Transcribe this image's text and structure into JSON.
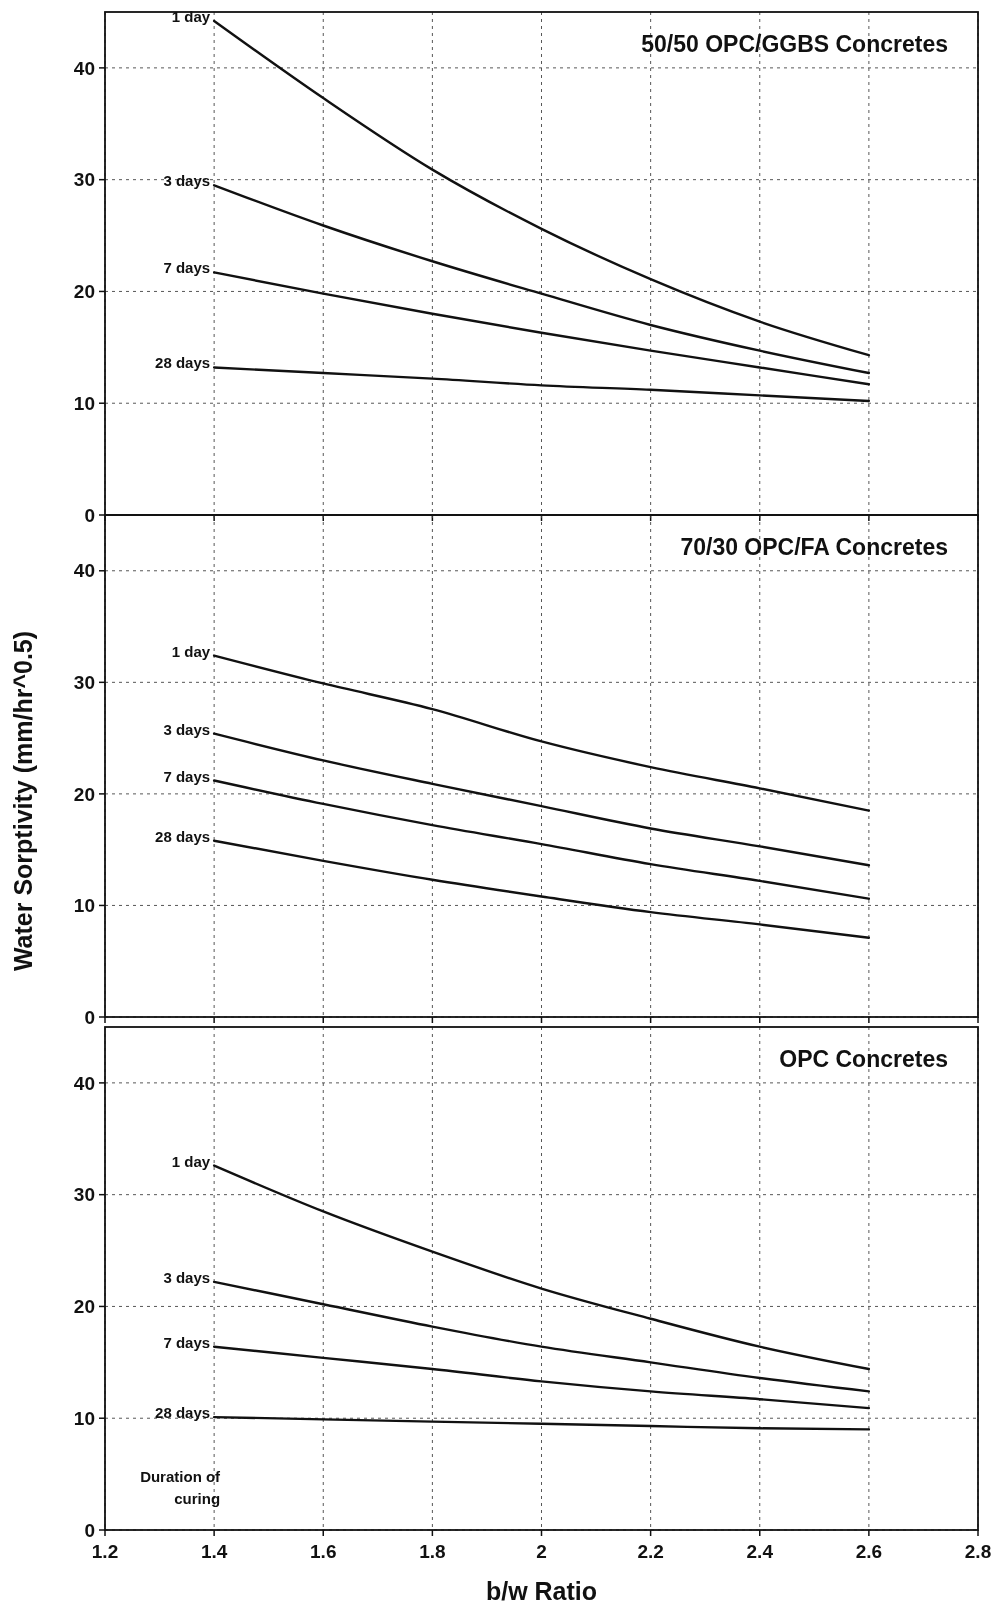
{
  "chart_data": [
    {
      "type": "line",
      "title": "50/50 OPC/GGBS Concretes",
      "x": [
        1.4,
        1.6,
        1.8,
        2.0,
        2.2,
        2.4,
        2.6
      ],
      "series": [
        {
          "name": "1 day",
          "color": "#111111",
          "values": [
            44.2,
            37.3,
            30.9,
            25.6,
            21.1,
            17.3,
            14.3
          ]
        },
        {
          "name": "3 days",
          "color": "#111111",
          "values": [
            29.5,
            25.9,
            22.7,
            19.8,
            17.0,
            14.7,
            12.7
          ]
        },
        {
          "name": "7 days",
          "color": "#111111",
          "values": [
            21.7,
            19.8,
            18.0,
            16.3,
            14.7,
            13.2,
            11.7
          ]
        },
        {
          "name": "28 days",
          "color": "#111111",
          "values": [
            13.2,
            12.7,
            12.2,
            11.6,
            11.2,
            10.7,
            10.2
          ]
        }
      ],
      "xlim": [
        1.2,
        2.8
      ],
      "xticks": [
        1.2,
        1.4,
        1.6,
        1.8,
        2,
        2.2,
        2.4,
        2.6,
        2.8
      ],
      "ylim": [
        0,
        45
      ],
      "yticks": [
        0,
        10,
        20,
        30,
        40
      ],
      "grid": true,
      "tick_labels": "y"
    },
    {
      "type": "line",
      "title": "70/30 OPC/FA Concretes",
      "ylabel": "Water Sorptivity (mm/hr^0.5)",
      "x": [
        1.4,
        1.6,
        1.8,
        2.0,
        2.2,
        2.4,
        2.6
      ],
      "series": [
        {
          "name": "1 day",
          "color": "#111111",
          "values": [
            32.4,
            29.9,
            27.6,
            24.7,
            22.4,
            20.5,
            18.5
          ]
        },
        {
          "name": "3 days",
          "color": "#111111",
          "values": [
            25.4,
            23.0,
            20.9,
            18.9,
            16.9,
            15.3,
            13.6
          ]
        },
        {
          "name": "7 days",
          "color": "#111111",
          "values": [
            21.2,
            19.1,
            17.2,
            15.5,
            13.7,
            12.2,
            10.6
          ]
        },
        {
          "name": "28 days",
          "color": "#111111",
          "values": [
            15.8,
            14.0,
            12.3,
            10.8,
            9.4,
            8.3,
            7.1
          ]
        }
      ],
      "xlim": [
        1.2,
        2.8
      ],
      "xticks": [
        1.2,
        1.4,
        1.6,
        1.8,
        2,
        2.2,
        2.4,
        2.6,
        2.8
      ],
      "ylim": [
        0,
        45
      ],
      "yticks": [
        0,
        10,
        20,
        30,
        40
      ],
      "grid": true,
      "tick_labels": "y"
    },
    {
      "type": "line",
      "title": "OPC Concretes",
      "xlabel": "b/w Ratio",
      "annotations": [
        "Duration of curing"
      ],
      "x": [
        1.4,
        1.6,
        1.8,
        2.0,
        2.2,
        2.4,
        2.6
      ],
      "series": [
        {
          "name": "1 day",
          "color": "#111111",
          "values": [
            32.6,
            28.5,
            24.9,
            21.6,
            18.9,
            16.4,
            14.4
          ]
        },
        {
          "name": "3 days",
          "color": "#111111",
          "values": [
            22.2,
            20.2,
            18.2,
            16.4,
            15.0,
            13.6,
            12.4
          ]
        },
        {
          "name": "7 days",
          "color": "#111111",
          "values": [
            16.4,
            15.4,
            14.4,
            13.3,
            12.4,
            11.7,
            10.9
          ]
        },
        {
          "name": "28 days",
          "color": "#111111",
          "values": [
            10.1,
            9.9,
            9.7,
            9.5,
            9.3,
            9.1,
            9.0
          ]
        }
      ],
      "xlim": [
        1.2,
        2.8
      ],
      "xticks": [
        1.2,
        1.4,
        1.6,
        1.8,
        2,
        2.2,
        2.4,
        2.6,
        2.8
      ],
      "ylim": [
        0,
        45
      ],
      "yticks": [
        0,
        10,
        20,
        30,
        40
      ],
      "grid": true
    }
  ]
}
